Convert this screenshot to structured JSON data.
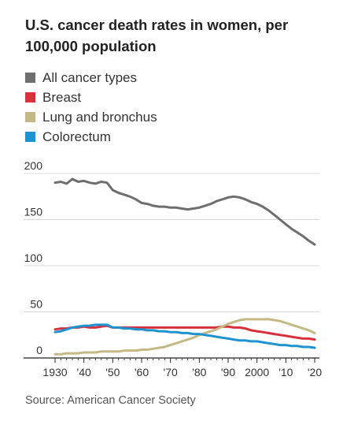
{
  "chart_data": {
    "type": "line",
    "title": "U.S. cancer death rates in women, per 100,000 population",
    "xlabel": "",
    "ylabel": "",
    "xlim": [
      1930,
      2021
    ],
    "ylim": [
      0,
      200
    ],
    "grid": "horizontal",
    "legend_position": "top-left",
    "y_ticks": [
      {
        "value": 0,
        "label": "0"
      },
      {
        "value": 50,
        "label": "50"
      },
      {
        "value": 100,
        "label": "100"
      },
      {
        "value": 150,
        "label": "150"
      },
      {
        "value": 200,
        "label": "200"
      }
    ],
    "x_ticks": [
      {
        "value": 1930,
        "label": "1930"
      },
      {
        "value": 1940,
        "label": "'40"
      },
      {
        "value": 1950,
        "label": "'50"
      },
      {
        "value": 1960,
        "label": "'60"
      },
      {
        "value": 1970,
        "label": "'70"
      },
      {
        "value": 1980,
        "label": "'80"
      },
      {
        "value": 1990,
        "label": "'90"
      },
      {
        "value": 2000,
        "label": "2000"
      },
      {
        "value": 2010,
        "label": "'10"
      },
      {
        "value": 2020,
        "label": "'20"
      }
    ],
    "x": [
      1930,
      1932,
      1934,
      1936,
      1938,
      1940,
      1942,
      1944,
      1946,
      1948,
      1950,
      1952,
      1954,
      1956,
      1958,
      1960,
      1962,
      1964,
      1966,
      1968,
      1970,
      1972,
      1974,
      1976,
      1978,
      1980,
      1982,
      1984,
      1986,
      1988,
      1990,
      1992,
      1994,
      1996,
      1998,
      2000,
      2002,
      2004,
      2006,
      2008,
      2010,
      2012,
      2014,
      2016,
      2018,
      2020
    ],
    "series": [
      {
        "name": "All cancer types",
        "color": "#6e6e6e",
        "values": [
          190,
          191,
          189,
          194,
          191,
          192,
          190,
          189,
          191,
          190,
          182,
          179,
          177,
          175,
          172,
          168,
          167,
          165,
          164,
          164,
          163,
          163,
          162,
          161,
          162,
          163,
          165,
          167,
          170,
          172,
          174,
          175,
          174,
          172,
          169,
          167,
          164,
          160,
          155,
          150,
          145,
          140,
          136,
          132,
          127,
          123
        ]
      },
      {
        "name": "Breast",
        "color": "#d9303d",
        "values": [
          31,
          32,
          32,
          33,
          33,
          34,
          33,
          33,
          34,
          35,
          33,
          33,
          33,
          33,
          33,
          33,
          33,
          33,
          33,
          33,
          33,
          33,
          33,
          33,
          33,
          33,
          33,
          33,
          33,
          34,
          34,
          33,
          33,
          32,
          30,
          29,
          28,
          27,
          26,
          25,
          24,
          23,
          22,
          21,
          21,
          20
        ]
      },
      {
        "name": "Lung and bronchus",
        "color": "#c4b884",
        "values": [
          4,
          4,
          5,
          5,
          5,
          6,
          6,
          6,
          7,
          7,
          7,
          7,
          8,
          8,
          8,
          9,
          9,
          10,
          11,
          12,
          14,
          16,
          18,
          20,
          22,
          25,
          27,
          29,
          31,
          34,
          37,
          39,
          41,
          42,
          42,
          42,
          42,
          42,
          41,
          40,
          38,
          36,
          34,
          32,
          30,
          27
        ]
      },
      {
        "name": "Colorectum",
        "color": "#1f93cf",
        "values": [
          28,
          29,
          31,
          33,
          34,
          35,
          35,
          36,
          36,
          36,
          33,
          33,
          32,
          32,
          31,
          31,
          30,
          30,
          29,
          29,
          28,
          28,
          27,
          27,
          26,
          26,
          25,
          24,
          23,
          22,
          21,
          20,
          19,
          19,
          18,
          18,
          17,
          16,
          15,
          14,
          14,
          13,
          13,
          12,
          12,
          11
        ]
      }
    ]
  },
  "source": "Source: American Cancer Society"
}
